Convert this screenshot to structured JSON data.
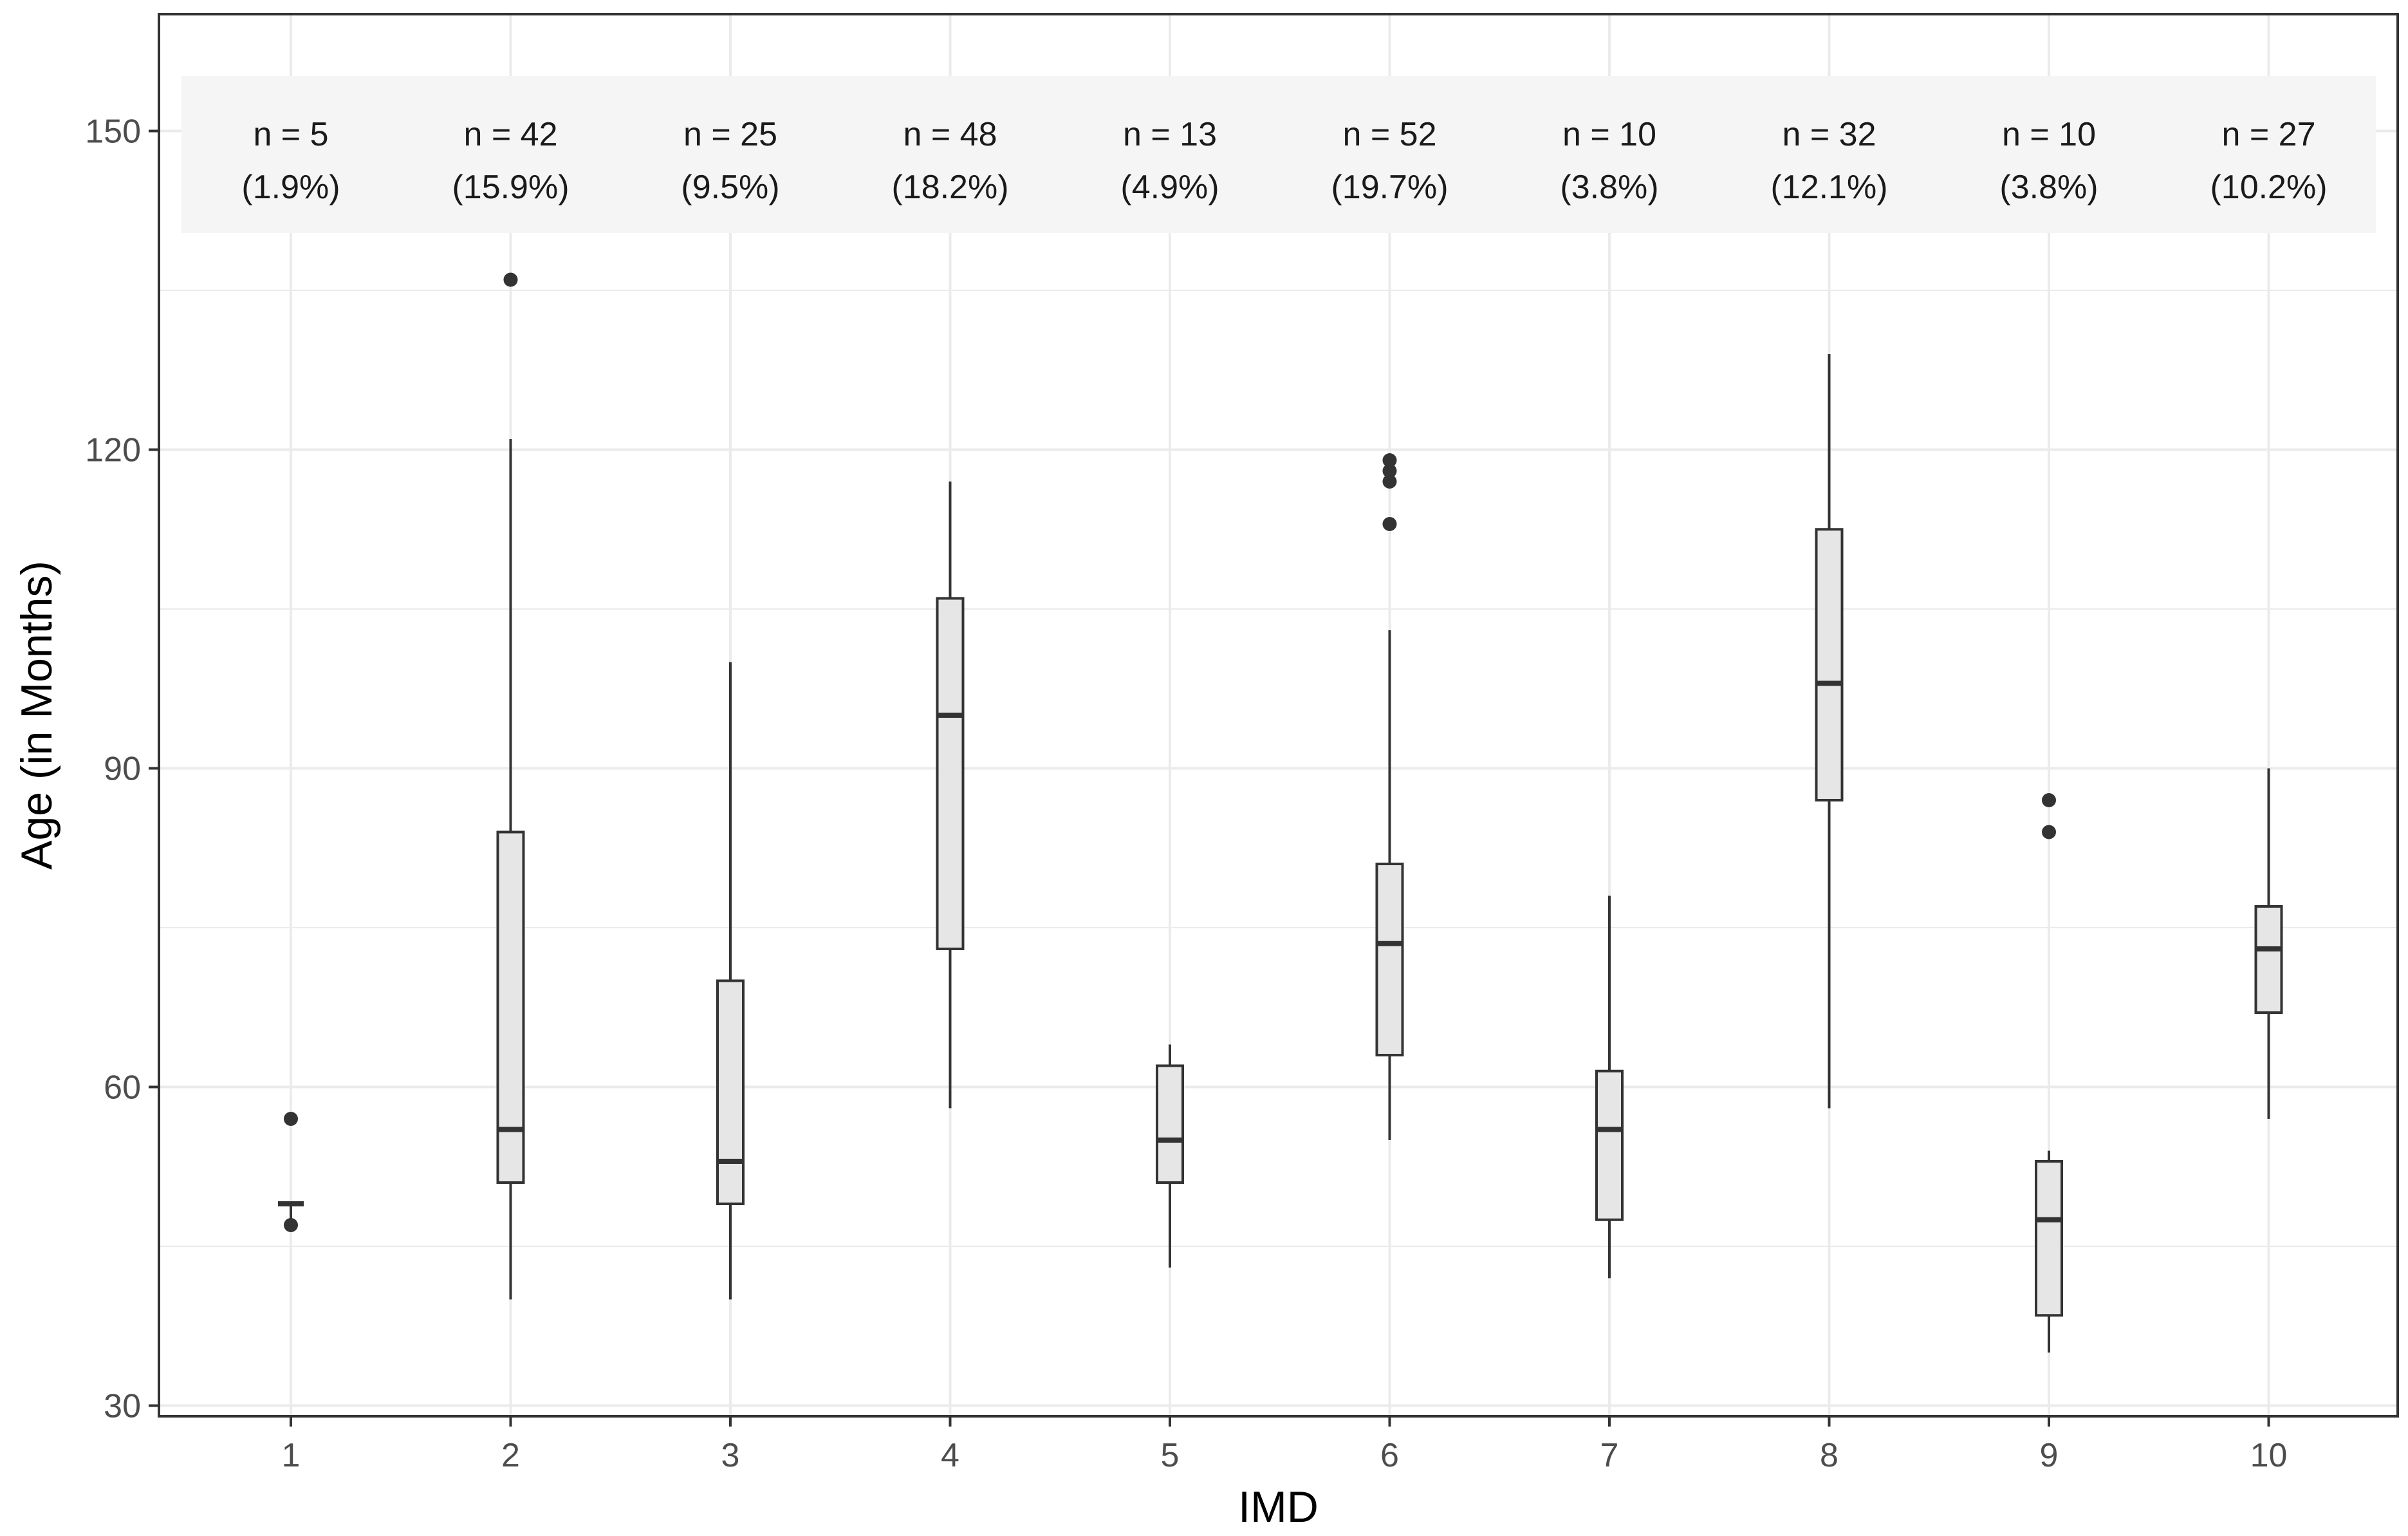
{
  "chart_data": {
    "type": "boxplot",
    "xlabel": "IMD",
    "ylabel": "Age (in Months)",
    "categories": [
      "1",
      "2",
      "3",
      "4",
      "5",
      "6",
      "7",
      "8",
      "9",
      "10"
    ],
    "ylim": [
      29,
      161
    ],
    "yticks": [
      30,
      60,
      90,
      120,
      150
    ],
    "grid": true,
    "colors": {
      "box_fill": "#e6e6e6",
      "box_stroke": "#333333",
      "grid": "#ebebeb",
      "annotation_band": "#f5f5f5"
    },
    "boxes": [
      {
        "category": "1",
        "whisker_low": 47,
        "q1": 49,
        "median": 49,
        "q3": 49,
        "whisker_high": 49,
        "outliers": [
          57,
          47
        ]
      },
      {
        "category": "2",
        "whisker_low": 40,
        "q1": 51,
        "median": 56,
        "q3": 84,
        "whisker_high": 121,
        "outliers": [
          136
        ]
      },
      {
        "category": "3",
        "whisker_low": 40,
        "q1": 49,
        "median": 53,
        "q3": 70,
        "whisker_high": 100,
        "outliers": []
      },
      {
        "category": "4",
        "whisker_low": 58,
        "q1": 73,
        "median": 95,
        "q3": 106,
        "whisker_high": 117,
        "outliers": []
      },
      {
        "category": "5",
        "whisker_low": 43,
        "q1": 51,
        "median": 55,
        "q3": 62,
        "whisker_high": 64,
        "outliers": []
      },
      {
        "category": "6",
        "whisker_low": 55,
        "q1": 63,
        "median": 73.5,
        "q3": 81,
        "whisker_high": 103,
        "outliers": [
          113,
          117,
          118,
          119
        ]
      },
      {
        "category": "7",
        "whisker_low": 42,
        "q1": 47.5,
        "median": 56,
        "q3": 61.5,
        "whisker_high": 78,
        "outliers": []
      },
      {
        "category": "8",
        "whisker_low": 58,
        "q1": 87,
        "median": 98,
        "q3": 112.5,
        "whisker_high": 129,
        "outliers": []
      },
      {
        "category": "9",
        "whisker_low": 35,
        "q1": 38.5,
        "median": 47.5,
        "q3": 53,
        "whisker_high": 54,
        "outliers": [
          84,
          87
        ]
      },
      {
        "category": "10",
        "whisker_low": 57,
        "q1": 67,
        "median": 73,
        "q3": 77,
        "whisker_high": 90,
        "outliers": []
      }
    ],
    "annotations": [
      {
        "category": "1",
        "count": "n = 5",
        "percent": "(1.9%)"
      },
      {
        "category": "2",
        "count": "n = 42",
        "percent": "(15.9%)"
      },
      {
        "category": "3",
        "count": "n = 25",
        "percent": "(9.5%)"
      },
      {
        "category": "4",
        "count": "n = 48",
        "percent": "(18.2%)"
      },
      {
        "category": "5",
        "count": "n = 13",
        "percent": "(4.9%)"
      },
      {
        "category": "6",
        "count": "n = 52",
        "percent": "(19.7%)"
      },
      {
        "category": "7",
        "count": "n = 10",
        "percent": "(3.8%)"
      },
      {
        "category": "8",
        "count": "n = 32",
        "percent": "(12.1%)"
      },
      {
        "category": "9",
        "count": "n = 10",
        "percent": "(3.8%)"
      },
      {
        "category": "10",
        "count": "n = 27",
        "percent": "(10.2%)"
      }
    ]
  }
}
